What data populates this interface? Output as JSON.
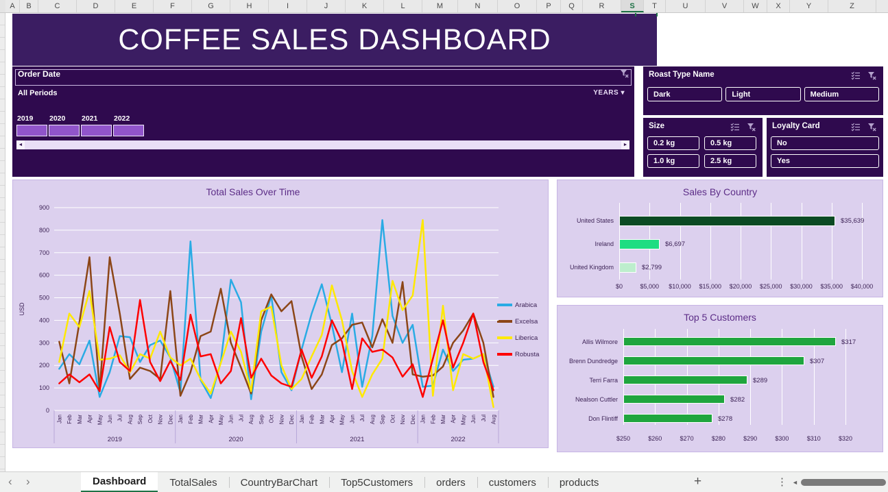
{
  "sheet": {
    "columns": [
      "A",
      "B",
      "C",
      "D",
      "E",
      "F",
      "G",
      "H",
      "I",
      "J",
      "K",
      "L",
      "M",
      "N",
      "O",
      "P",
      "Q",
      "R",
      "S",
      "T",
      "U",
      "V",
      "W",
      "X",
      "Y",
      "Z"
    ],
    "selected_column": "S"
  },
  "banner": {
    "title": "COFFEE SALES DASHBOARD"
  },
  "timeline": {
    "header": "Order Date",
    "period_label": "All Periods",
    "level_label": "YEARS",
    "level_arrow": "▾",
    "years": [
      "2019",
      "2020",
      "2021",
      "2022"
    ],
    "scroll_left": "◄",
    "scroll_right": "►"
  },
  "slicers": [
    {
      "title": "Roast Type Name",
      "items": [
        "Dark",
        "Light",
        "Medium"
      ]
    },
    {
      "title": "Size",
      "items": [
        "0.2 kg",
        "0.5 kg",
        "1.0 kg",
        "2.5 kg"
      ]
    },
    {
      "title": "Loyalty Card",
      "items": [
        "No",
        "Yes"
      ]
    }
  ],
  "colors": {
    "banner_purple": "#3b1d62",
    "slicer_purple": "#2f0a4e",
    "timeline_block": "#9155cb",
    "chart_bg": "#dcd0ee",
    "chart_title": "#5c2d87",
    "tab_green": "#1e7145"
  },
  "chart_data": [
    {
      "type": "line",
      "title": "Total Sales Over Time",
      "ylabel": "USD",
      "ylim": [
        0,
        900
      ],
      "ytick_step": 100,
      "grid": true,
      "legend_position": "right",
      "x_labels": [
        "Jan",
        "Feb",
        "Mar",
        "Apr",
        "May",
        "Jun",
        "Jul",
        "Aug",
        "Sep",
        "Oct",
        "Nov",
        "Dec",
        "Jan",
        "Feb",
        "Mar",
        "Apr",
        "May",
        "Jun",
        "Jul",
        "Aug",
        "Sep",
        "Oct",
        "Nov",
        "Dec",
        "Jan",
        "Feb",
        "Mar",
        "Apr",
        "May",
        "Jun",
        "Jul",
        "Aug",
        "Sep",
        "Oct",
        "Nov",
        "Dec",
        "Jan",
        "Feb",
        "Mar",
        "Apr",
        "May",
        "Jun",
        "Jul",
        "Aug"
      ],
      "year_groups": [
        {
          "label": "2019",
          "count": 12
        },
        {
          "label": "2020",
          "count": 12
        },
        {
          "label": "2021",
          "count": 12
        },
        {
          "label": "2022",
          "count": 8
        }
      ],
      "series": [
        {
          "name": "Arabica",
          "color": "#2aabe4",
          "values": [
            185,
            250,
            205,
            310,
            60,
            170,
            330,
            325,
            215,
            290,
            310,
            235,
            80,
            750,
            135,
            55,
            215,
            580,
            480,
            50,
            350,
            510,
            170,
            90,
            270,
            430,
            560,
            380,
            170,
            430,
            105,
            330,
            845,
            420,
            300,
            380,
            105,
            110,
            270,
            175,
            225,
            230,
            250,
            105
          ]
        },
        {
          "name": "Excelsa",
          "color": "#8c4617",
          "values": [
            305,
            120,
            390,
            680,
            90,
            680,
            430,
            140,
            190,
            175,
            140,
            530,
            65,
            170,
            330,
            350,
            540,
            300,
            190,
            75,
            400,
            515,
            440,
            485,
            240,
            95,
            160,
            290,
            320,
            380,
            390,
            280,
            405,
            300,
            570,
            160,
            150,
            155,
            195,
            300,
            355,
            430,
            300,
            60
          ]
        },
        {
          "name": "Liberica",
          "color": "#ffe900",
          "values": [
            215,
            430,
            370,
            530,
            225,
            230,
            245,
            170,
            250,
            230,
            350,
            235,
            200,
            230,
            140,
            75,
            210,
            350,
            260,
            85,
            440,
            460,
            200,
            95,
            140,
            240,
            335,
            555,
            400,
            175,
            60,
            160,
            230,
            575,
            445,
            510,
            845,
            65,
            465,
            90,
            250,
            230,
            250,
            15
          ]
        },
        {
          "name": "Robusta",
          "color": "#fe0000",
          "values": [
            120,
            160,
            125,
            160,
            85,
            370,
            215,
            175,
            490,
            215,
            130,
            220,
            135,
            425,
            240,
            250,
            120,
            175,
            410,
            145,
            230,
            155,
            120,
            105,
            270,
            145,
            240,
            400,
            305,
            95,
            320,
            260,
            270,
            235,
            150,
            205,
            60,
            230,
            400,
            190,
            300,
            430,
            215,
            90
          ]
        }
      ]
    },
    {
      "type": "bar",
      "title": "Sales By Country",
      "categories": [
        "United States",
        "Ireland",
        "United Kingdom"
      ],
      "values": [
        35639,
        6697,
        2799
      ],
      "value_labels": [
        "$35,639",
        "$6,697",
        "$2,799"
      ],
      "bar_colors": [
        "#0b4a23",
        "#1edd82",
        "#bdeecd"
      ],
      "xlim": [
        0,
        40000
      ],
      "xtick_labels": [
        "$0",
        "$5,000",
        "$10,000",
        "$15,000",
        "$20,000",
        "$25,000",
        "$30,000",
        "$35,000",
        "$40,000"
      ],
      "grid": true
    },
    {
      "type": "bar",
      "title": "Top 5 Customers",
      "categories": [
        "Allis Wilmore",
        "Brenn Dundredge",
        "Terri Farra",
        "Nealson Cuttler",
        "Don Flintiff"
      ],
      "values": [
        317,
        307,
        289,
        282,
        278
      ],
      "value_labels": [
        "$317",
        "$307",
        "$289",
        "$282",
        "$278"
      ],
      "bar_colors": [
        "#1fa53e",
        "#1fa53e",
        "#1fa53e",
        "#1fa53e",
        "#1fa53e"
      ],
      "xlim": [
        250,
        320
      ],
      "xtick_labels": [
        "$250",
        "$260",
        "$270",
        "$280",
        "$290",
        "$300",
        "$310",
        "$320"
      ],
      "grid": true
    }
  ],
  "tabbar": {
    "nav_left": "‹",
    "nav_right": "›",
    "tabs": [
      {
        "label": "Dashboard",
        "active": true
      },
      {
        "label": "TotalSales",
        "active": false
      },
      {
        "label": "CountryBarChart",
        "active": false
      },
      {
        "label": "Top5Customers",
        "active": false
      },
      {
        "label": "orders",
        "active": false
      },
      {
        "label": "customers",
        "active": false
      },
      {
        "label": "products",
        "active": false
      }
    ],
    "add_label": "+",
    "menu_label": "⋮",
    "scroll_left": "◄"
  }
}
